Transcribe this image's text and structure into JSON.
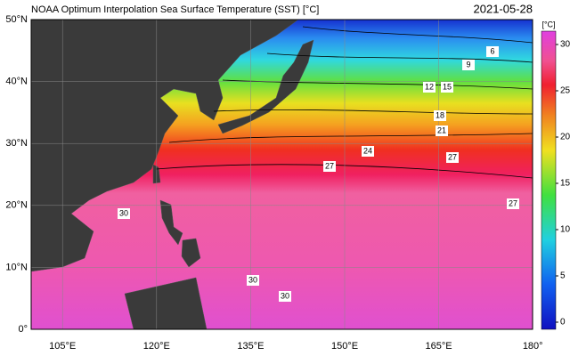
{
  "header": {
    "title": "NOAA Optimum Interpolation Sea Surface Temperature (SST) [°C]",
    "date": "2021-05-28"
  },
  "map": {
    "lat_labels": [
      "50°N",
      "40°N",
      "30°N",
      "20°N",
      "10°N",
      "0°"
    ],
    "lon_labels": [
      "105°E",
      "120°E",
      "135°E",
      "150°E",
      "165°E",
      "180°"
    ],
    "contour_labels": [
      6,
      9,
      12,
      15,
      18,
      21,
      24,
      27,
      27,
      27,
      30,
      30,
      30
    ]
  },
  "colorbar": {
    "unit": "[°C]",
    "ticks": [
      0,
      5,
      10,
      15,
      20,
      25,
      30
    ]
  }
}
